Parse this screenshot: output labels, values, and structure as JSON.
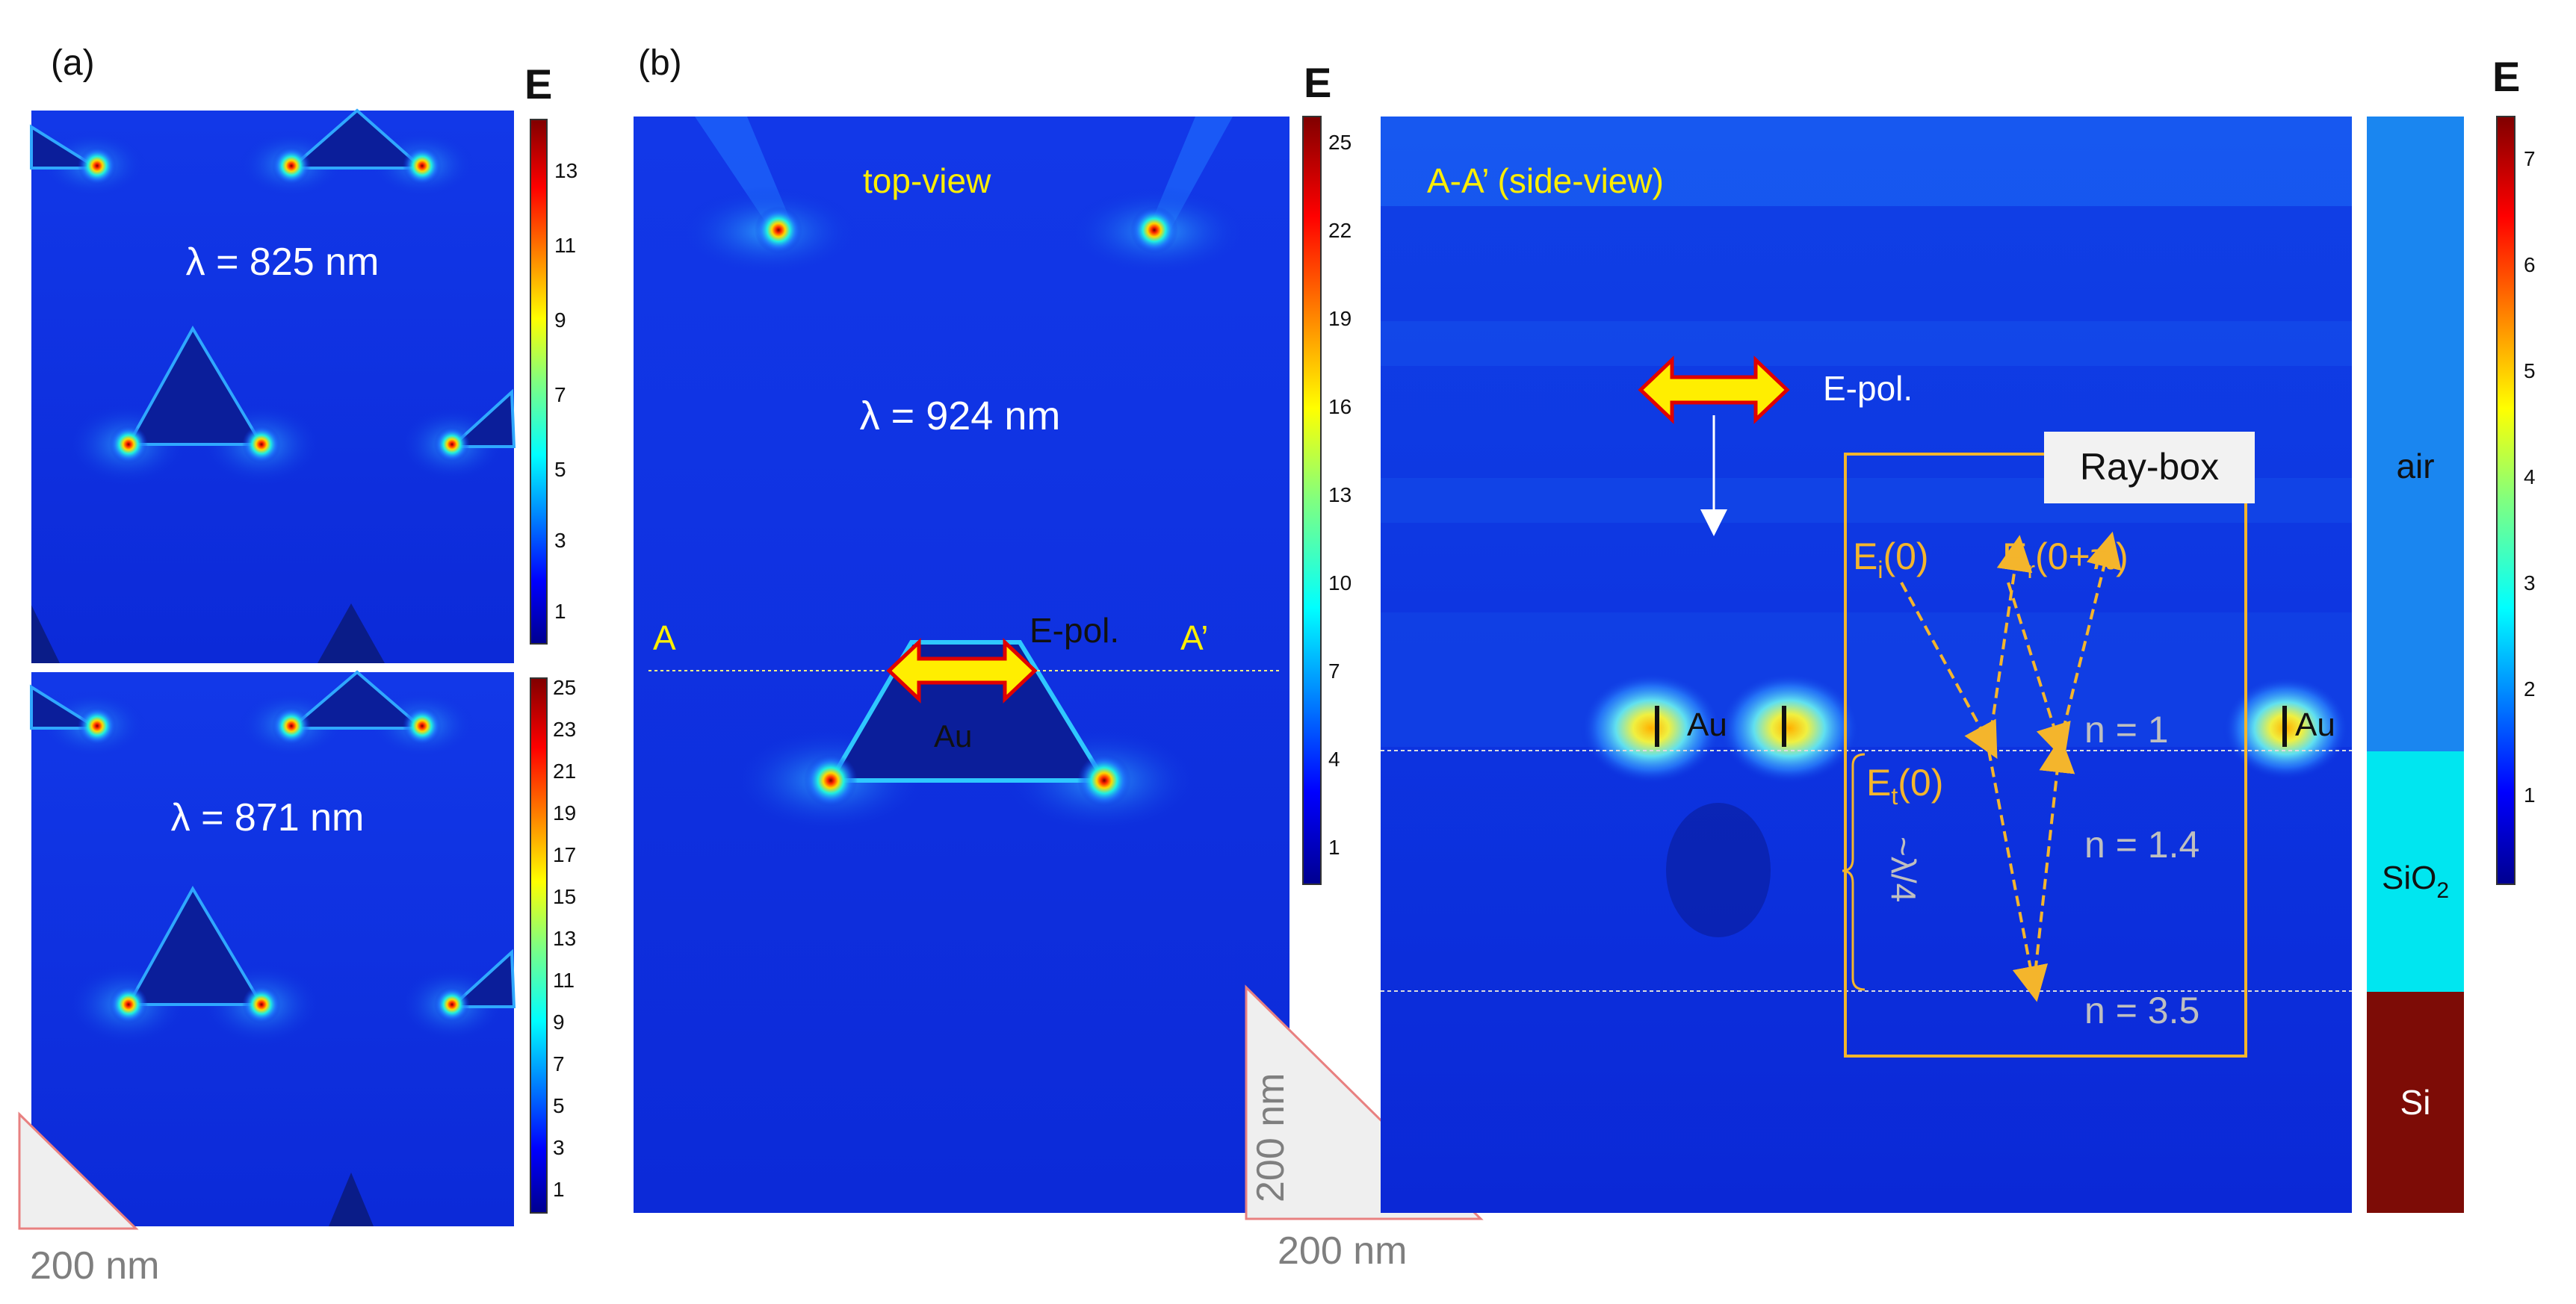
{
  "panel_a": {
    "label": "(a)",
    "colorbar_title": "E",
    "top_map": {
      "wavelength_label": "λ = 825 nm",
      "ticks": [
        "13",
        "11",
        "9",
        "7",
        "5",
        "3",
        "1"
      ]
    },
    "bottom_map": {
      "wavelength_label": "λ = 871 nm",
      "ticks": [
        "25",
        "23",
        "21",
        "19",
        "17",
        "15",
        "13",
        "11",
        "9",
        "7",
        "5",
        "3",
        "1"
      ]
    },
    "scale_label": "200 nm"
  },
  "panel_b": {
    "label": "(b)",
    "top_view": {
      "title": "top-view",
      "wavelength_label": "λ = 924 nm",
      "section_start": "A",
      "section_end": "A’",
      "polarization": "E-pol.",
      "particle": "Au",
      "colorbar_title": "E",
      "ticks": [
        "25",
        "22",
        "19",
        "16",
        "13",
        "10",
        "7",
        "4",
        "1"
      ],
      "scale_vertical": "200 nm",
      "scale_horizontal": "200 nm"
    },
    "side_view": {
      "title": "A-A’ (side-view)",
      "polarization": "E-pol.",
      "particle_left": "Au",
      "particle_right": "Au",
      "ray_box": "Ray-box",
      "incident": "E",
      "incident_sub": "i",
      "incident_arg": "(0)",
      "reflected": "E",
      "reflected_sub": "r",
      "reflected_arg": "(0+π)",
      "transmitted": "E",
      "transmitted_sub": "t",
      "transmitted_arg": "(0)",
      "thickness": "~λ/4",
      "index_air": "n = 1",
      "index_sio2": "n = 1.4",
      "index_si": "n = 3.5",
      "layers": [
        {
          "name": "air",
          "color": "#1a86f0"
        },
        {
          "name": "SiO",
          "sub": "2",
          "color": "#00e6f0"
        },
        {
          "name": "Si",
          "color": "#7d0c06"
        }
      ],
      "colorbar_title": "E",
      "ticks": [
        "7",
        "6",
        "5",
        "4",
        "3",
        "2",
        "1"
      ]
    }
  },
  "colors": {
    "field_background": "#0c2ee0",
    "annotation_yellow": "#ffee00",
    "ray_orange": "#f4b52c",
    "gray_text": "#bfbfbf",
    "scale_gray": "#7f7f7f"
  }
}
